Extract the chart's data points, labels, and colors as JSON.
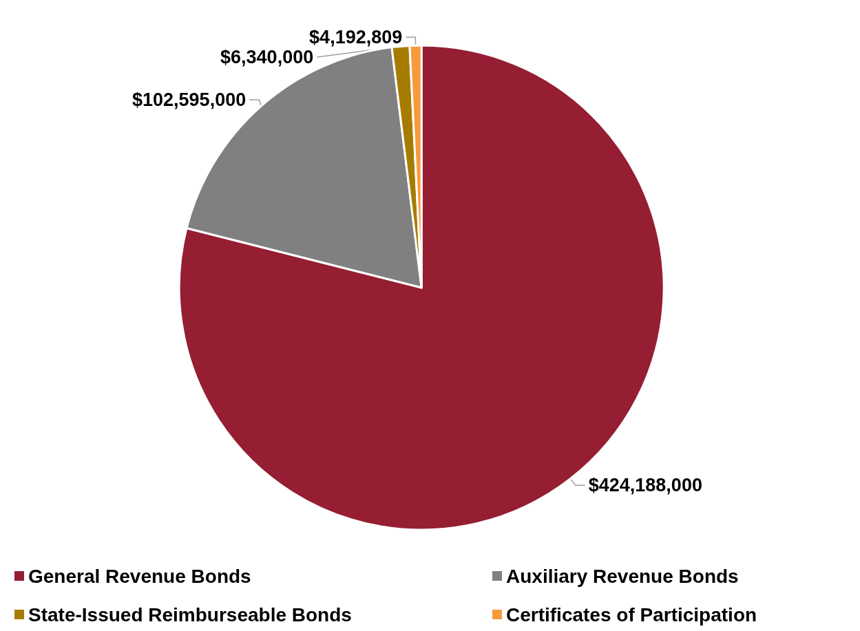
{
  "chart_data": {
    "type": "pie",
    "categories": [
      "General Revenue Bonds",
      "Auxiliary Revenue Bonds",
      "State-Issued Reimburseable Bonds",
      "Certificates of Participation"
    ],
    "values": [
      424188000,
      102595000,
      6340000,
      4192809
    ],
    "value_labels": [
      "$424,188,000",
      "$102,595,000",
      "$6,340,000",
      "$4,192,809"
    ],
    "colors": [
      "#961e32",
      "#808080",
      "#a67c00",
      "#f79a3e"
    ],
    "legend": "bottom"
  }
}
